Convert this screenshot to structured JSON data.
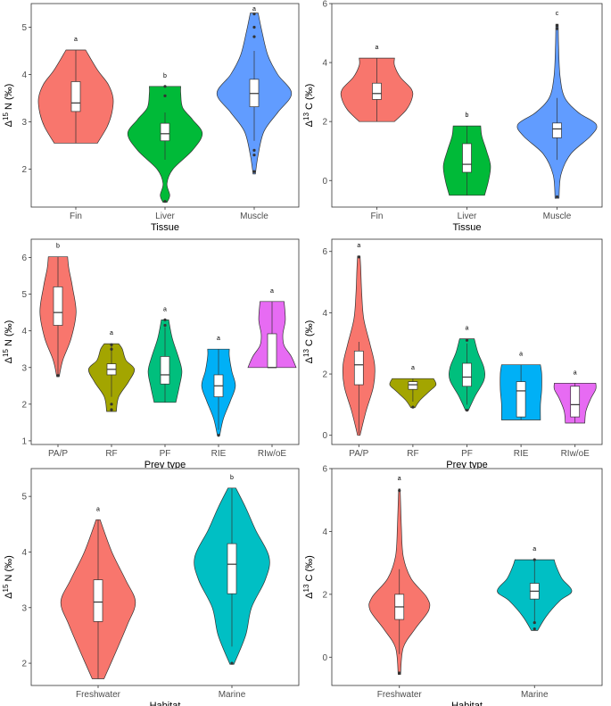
{
  "chart_data": [
    {
      "type": "violin",
      "xlabel": "Tissue",
      "ylabel": "Δ15 N (‰)",
      "ylabel_parts": {
        "pre": "Δ",
        "sup": "15",
        "post": " N (‰)"
      },
      "ylim": [
        1.2,
        5.5
      ],
      "yticks": [
        "2",
        "3",
        "4",
        "5"
      ],
      "categories": [
        "Fin",
        "Liver",
        "Muscle"
      ],
      "colors": [
        "#f8766d",
        "#00ba38",
        "#619cff"
      ],
      "letters": [
        "a",
        "b",
        "a"
      ],
      "violins": [
        {
          "min": 2.55,
          "max": 4.52,
          "q1": 3.22,
          "median": 3.4,
          "q3": 3.85,
          "wlo": 2.55,
          "whi": 4.52,
          "outliers": [],
          "profile": [
            [
              2.55,
              0.55
            ],
            [
              2.9,
              0.8
            ],
            [
              3.2,
              0.92
            ],
            [
              3.5,
              0.95
            ],
            [
              3.8,
              0.82
            ],
            [
              4.1,
              0.55
            ],
            [
              4.52,
              0.25
            ]
          ]
        },
        {
          "min": 1.3,
          "max": 3.75,
          "q1": 2.6,
          "median": 2.75,
          "q3": 2.97,
          "wlo": 2.2,
          "whi": 3.2,
          "outliers": [
            1.32,
            3.75,
            3.55
          ],
          "profile": [
            [
              1.3,
              0.05
            ],
            [
              1.45,
              0.12
            ],
            [
              1.7,
              0.05
            ],
            [
              2.0,
              0.2
            ],
            [
              2.4,
              0.7
            ],
            [
              2.75,
              0.95
            ],
            [
              3.05,
              0.7
            ],
            [
              3.3,
              0.45
            ],
            [
              3.6,
              0.4
            ],
            [
              3.75,
              0.4
            ]
          ]
        },
        {
          "min": 1.9,
          "max": 5.3,
          "q1": 3.32,
          "median": 3.6,
          "q3": 3.9,
          "wlo": 2.6,
          "whi": 4.5,
          "outliers": [
            1.95,
            2.3,
            2.4,
            4.8,
            5.0,
            5.28
          ],
          "profile": [
            [
              1.9,
              0.03
            ],
            [
              2.3,
              0.1
            ],
            [
              2.8,
              0.25
            ],
            [
              3.2,
              0.6
            ],
            [
              3.6,
              0.95
            ],
            [
              4.0,
              0.6
            ],
            [
              4.4,
              0.35
            ],
            [
              4.9,
              0.2
            ],
            [
              5.3,
              0.1
            ]
          ]
        }
      ]
    },
    {
      "type": "violin",
      "xlabel": "Tissue",
      "ylabel": "Δ13 C (‰)",
      "ylabel_parts": {
        "pre": "Δ",
        "sup": "13",
        "post": " C (‰)"
      },
      "ylim": [
        -0.9,
        6.0
      ],
      "yticks": [
        "0",
        "2",
        "4",
        "6"
      ],
      "categories": [
        "Fin",
        "Liver",
        "Muscle"
      ],
      "colors": [
        "#f8766d",
        "#00ba38",
        "#619cff"
      ],
      "letters": [
        "a",
        "b",
        "c"
      ],
      "violins": [
        {
          "min": 2.0,
          "max": 4.15,
          "q1": 2.75,
          "median": 2.95,
          "q3": 3.3,
          "wlo": 2.0,
          "whi": 4.15,
          "outliers": [],
          "profile": [
            [
              2.0,
              0.45
            ],
            [
              2.4,
              0.75
            ],
            [
              2.8,
              0.9
            ],
            [
              3.1,
              0.88
            ],
            [
              3.5,
              0.6
            ],
            [
              3.9,
              0.45
            ],
            [
              4.15,
              0.45
            ]
          ]
        },
        {
          "min": -0.5,
          "max": 1.85,
          "q1": 0.28,
          "median": 0.55,
          "q3": 1.25,
          "wlo": -0.5,
          "whi": 1.85,
          "outliers": [],
          "profile": [
            [
              -0.5,
              0.45
            ],
            [
              0.0,
              0.55
            ],
            [
              0.5,
              0.6
            ],
            [
              1.0,
              0.5
            ],
            [
              1.5,
              0.38
            ],
            [
              1.85,
              0.35
            ]
          ]
        },
        {
          "min": -0.6,
          "max": 5.3,
          "q1": 1.45,
          "median": 1.75,
          "q3": 1.95,
          "wlo": 0.7,
          "whi": 2.8,
          "outliers": [
            -0.55,
            5.15,
            5.25
          ],
          "profile": [
            [
              -0.6,
              0.05
            ],
            [
              0.2,
              0.1
            ],
            [
              0.9,
              0.35
            ],
            [
              1.5,
              0.85
            ],
            [
              1.9,
              1.0
            ],
            [
              2.3,
              0.55
            ],
            [
              2.8,
              0.2
            ],
            [
              3.5,
              0.08
            ],
            [
              4.5,
              0.04
            ],
            [
              5.3,
              0.03
            ]
          ]
        }
      ]
    },
    {
      "type": "violin",
      "xlabel": "Prey type",
      "ylabel": "Δ15 N (‰)",
      "ylabel_parts": {
        "pre": "Δ",
        "sup": "15",
        "post": " N (‰)"
      },
      "ylim": [
        0.9,
        6.5
      ],
      "yticks": [
        "1",
        "2",
        "3",
        "4",
        "5",
        "6"
      ],
      "categories": [
        "PA/P",
        "RF",
        "PF",
        "RIE",
        "RIw/oE"
      ],
      "colors": [
        "#f8766d",
        "#a3a500",
        "#00bf7d",
        "#00b0f6",
        "#e76bf3"
      ],
      "letters": [
        "b",
        "a",
        "a",
        "a",
        "a"
      ],
      "violins": [
        {
          "min": 2.75,
          "max": 6.02,
          "q1": 4.15,
          "median": 4.5,
          "q3": 5.2,
          "wlo": 2.8,
          "whi": 6.02,
          "outliers": [
            2.78
          ],
          "profile": [
            [
              2.75,
              0.05
            ],
            [
              3.2,
              0.2
            ],
            [
              3.8,
              0.55
            ],
            [
              4.5,
              0.75
            ],
            [
              5.2,
              0.6
            ],
            [
              5.7,
              0.45
            ],
            [
              6.02,
              0.4
            ]
          ]
        },
        {
          "min": 1.8,
          "max": 3.65,
          "q1": 2.8,
          "median": 2.95,
          "q3": 3.1,
          "wlo": 2.2,
          "whi": 3.6,
          "outliers": [
            1.85,
            2.0,
            3.5,
            3.62
          ],
          "profile": [
            [
              1.8,
              0.2
            ],
            [
              2.2,
              0.3
            ],
            [
              2.6,
              0.7
            ],
            [
              2.95,
              0.95
            ],
            [
              3.2,
              0.6
            ],
            [
              3.5,
              0.45
            ],
            [
              3.65,
              0.3
            ]
          ]
        },
        {
          "min": 2.05,
          "max": 4.3,
          "q1": 2.55,
          "median": 2.8,
          "q3": 3.3,
          "wlo": 2.05,
          "whi": 4.1,
          "outliers": [
            4.15,
            4.3
          ],
          "profile": [
            [
              2.05,
              0.45
            ],
            [
              2.5,
              0.6
            ],
            [
              2.9,
              0.7
            ],
            [
              3.3,
              0.55
            ],
            [
              3.8,
              0.3
            ],
            [
              4.3,
              0.15
            ]
          ]
        },
        {
          "min": 1.15,
          "max": 3.5,
          "q1": 2.2,
          "median": 2.5,
          "q3": 2.8,
          "wlo": 1.3,
          "whi": 3.5,
          "outliers": [
            1.15
          ],
          "profile": [
            [
              1.15,
              0.05
            ],
            [
              1.6,
              0.2
            ],
            [
              2.1,
              0.5
            ],
            [
              2.5,
              0.7
            ],
            [
              2.9,
              0.55
            ],
            [
              3.3,
              0.45
            ],
            [
              3.5,
              0.45
            ]
          ]
        },
        {
          "min": 3.0,
          "max": 4.8,
          "q1": 3.0,
          "median": 3.0,
          "q3": 3.92,
          "wlo": 3.0,
          "whi": 4.8,
          "outliers": [],
          "profile": [
            [
              3.0,
              1.0
            ],
            [
              3.3,
              0.8
            ],
            [
              3.6,
              0.5
            ],
            [
              3.9,
              0.45
            ],
            [
              4.3,
              0.55
            ],
            [
              4.8,
              0.5
            ]
          ]
        }
      ]
    },
    {
      "type": "violin",
      "xlabel": "Prey type",
      "ylabel": "Δ13 C (‰)",
      "ylabel_parts": {
        "pre": "Δ",
        "sup": "13",
        "post": " C (‰)"
      },
      "ylim": [
        -0.3,
        6.4
      ],
      "yticks": [
        "0",
        "2",
        "4",
        "6"
      ],
      "categories": [
        "PA/P",
        "RF",
        "PF",
        "RIE",
        "RIw/oE"
      ],
      "colors": [
        "#f8766d",
        "#a3a500",
        "#00bf7d",
        "#00b0f6",
        "#e76bf3"
      ],
      "letters": [
        "a",
        "a",
        "a",
        "a",
        "a"
      ],
      "violins": [
        {
          "min": 0.0,
          "max": 5.85,
          "q1": 1.65,
          "median": 2.3,
          "q3": 2.75,
          "wlo": 0.05,
          "whi": 3.05,
          "outliers": [
            5.82
          ],
          "profile": [
            [
              0.0,
              0.05
            ],
            [
              0.8,
              0.3
            ],
            [
              1.6,
              0.6
            ],
            [
              2.3,
              0.65
            ],
            [
              3.0,
              0.45
            ],
            [
              3.8,
              0.2
            ],
            [
              4.6,
              0.12
            ],
            [
              5.4,
              0.08
            ],
            [
              5.85,
              0.05
            ]
          ]
        },
        {
          "min": 0.9,
          "max": 1.85,
          "q1": 1.5,
          "median": 1.65,
          "q3": 1.75,
          "wlo": 1.1,
          "whi": 1.85,
          "outliers": [
            0.92
          ],
          "profile": [
            [
              0.9,
              0.08
            ],
            [
              1.15,
              0.3
            ],
            [
              1.45,
              0.7
            ],
            [
              1.65,
              0.95
            ],
            [
              1.85,
              0.85
            ]
          ]
        },
        {
          "min": 0.8,
          "max": 3.15,
          "q1": 1.6,
          "median": 1.9,
          "q3": 2.35,
          "wlo": 1.0,
          "whi": 3.0,
          "outliers": [
            0.82,
            3.1
          ],
          "profile": [
            [
              0.8,
              0.05
            ],
            [
              1.3,
              0.35
            ],
            [
              1.8,
              0.7
            ],
            [
              2.2,
              0.7
            ],
            [
              2.7,
              0.45
            ],
            [
              3.15,
              0.3
            ]
          ]
        },
        {
          "min": 0.5,
          "max": 2.3,
          "q1": 0.6,
          "median": 1.45,
          "q3": 1.75,
          "wlo": 0.5,
          "whi": 2.3,
          "outliers": [],
          "profile": [
            [
              0.5,
              0.8
            ],
            [
              1.0,
              0.8
            ],
            [
              1.5,
              0.85
            ],
            [
              2.0,
              0.85
            ],
            [
              2.3,
              0.8
            ]
          ]
        },
        {
          "min": 0.4,
          "max": 1.7,
          "q1": 0.6,
          "median": 1.0,
          "q3": 1.6,
          "wlo": 0.4,
          "whi": 1.7,
          "outliers": [],
          "profile": [
            [
              0.4,
              0.4
            ],
            [
              0.8,
              0.45
            ],
            [
              1.2,
              0.65
            ],
            [
              1.5,
              0.85
            ],
            [
              1.7,
              0.85
            ]
          ]
        }
      ]
    },
    {
      "type": "violin",
      "xlabel": "Habitat",
      "ylabel": "Δ15 N (‰)",
      "ylabel_parts": {
        "pre": "Δ",
        "sup": "15",
        "post": " N (‰)"
      },
      "ylim": [
        1.6,
        5.5
      ],
      "yticks": [
        "2",
        "3",
        "4",
        "5"
      ],
      "categories": [
        "Freshwater",
        "Marine"
      ],
      "colors": [
        "#f8766d",
        "#00bfc4"
      ],
      "letters": [
        "a",
        "b"
      ],
      "violins": [
        {
          "min": 1.72,
          "max": 4.58,
          "q1": 2.75,
          "median": 3.1,
          "q3": 3.5,
          "wlo": 1.72,
          "whi": 4.58,
          "outliers": [],
          "profile": [
            [
              1.72,
              0.15
            ],
            [
              2.2,
              0.45
            ],
            [
              2.7,
              0.75
            ],
            [
              3.1,
              0.95
            ],
            [
              3.5,
              0.7
            ],
            [
              4.0,
              0.35
            ],
            [
              4.58,
              0.05
            ]
          ]
        },
        {
          "min": 1.98,
          "max": 5.15,
          "q1": 3.25,
          "median": 3.78,
          "q3": 4.15,
          "wlo": 2.3,
          "whi": 5.15,
          "outliers": [
            2.0
          ],
          "profile": [
            [
              1.98,
              0.05
            ],
            [
              2.5,
              0.35
            ],
            [
              3.0,
              0.5
            ],
            [
              3.5,
              0.85
            ],
            [
              3.9,
              0.95
            ],
            [
              4.4,
              0.6
            ],
            [
              4.8,
              0.35
            ],
            [
              5.15,
              0.1
            ]
          ]
        }
      ]
    },
    {
      "type": "violin",
      "xlabel": "Habitat",
      "ylabel": "Δ13 C (‰)",
      "ylabel_parts": {
        "pre": "Δ",
        "sup": "13",
        "post": " C (‰)"
      },
      "ylim": [
        -0.9,
        6.0
      ],
      "yticks": [
        "0",
        "2",
        "4",
        "6"
      ],
      "categories": [
        "Freshwater",
        "Marine"
      ],
      "colors": [
        "#f8766d",
        "#00bfc4"
      ],
      "letters": [
        "a",
        "a"
      ],
      "violins": [
        {
          "min": -0.55,
          "max": 5.35,
          "q1": 1.2,
          "median": 1.6,
          "q3": 2.0,
          "wlo": 0.1,
          "whi": 2.8,
          "outliers": [
            -0.5,
            5.3
          ],
          "profile": [
            [
              -0.55,
              0.03
            ],
            [
              0.3,
              0.1
            ],
            [
              0.9,
              0.4
            ],
            [
              1.5,
              0.75
            ],
            [
              1.9,
              0.7
            ],
            [
              2.5,
              0.3
            ],
            [
              3.2,
              0.1
            ],
            [
              4.2,
              0.05
            ],
            [
              5.35,
              0.02
            ]
          ]
        },
        {
          "min": 0.85,
          "max": 3.1,
          "q1": 1.85,
          "median": 2.1,
          "q3": 2.35,
          "wlo": 1.1,
          "whi": 3.05,
          "outliers": [
            0.9,
            1.1,
            3.1
          ],
          "profile": [
            [
              0.85,
              0.08
            ],
            [
              1.3,
              0.3
            ],
            [
              1.8,
              0.65
            ],
            [
              2.1,
              0.95
            ],
            [
              2.5,
              0.7
            ],
            [
              2.9,
              0.55
            ],
            [
              3.1,
              0.5
            ]
          ]
        }
      ]
    }
  ]
}
